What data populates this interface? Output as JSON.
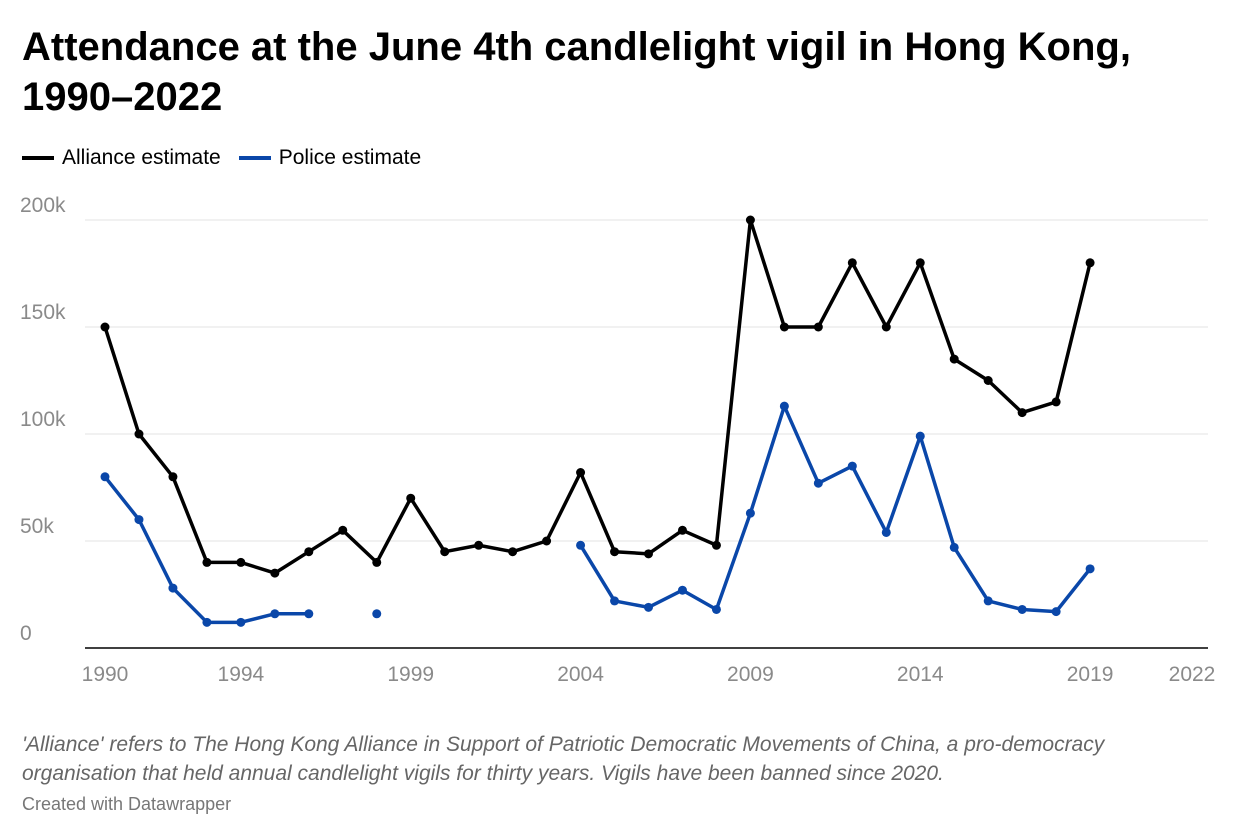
{
  "title": "Attendance at the June 4th candlelight vigil in Hong Kong, 1990–2022",
  "legend": [
    {
      "label": "Alliance estimate",
      "color": "#000000"
    },
    {
      "label": "Police estimate",
      "color": "#0a47a9"
    }
  ],
  "note": "'Alliance' refers to The Hong Kong Alliance in Support of Patriotic Democratic Movements of China, a pro-democracy organisation that held annual candlelight vigils for thirty years. Vigils have been banned since 2020.",
  "credit": "Created with Datawrapper",
  "chart_data": {
    "type": "line",
    "title": "Attendance at the June 4th candlelight vigil in Hong Kong, 1990–2022",
    "xlabel": "",
    "ylabel": "",
    "xlim": [
      1990,
      2022
    ],
    "ylim": [
      0,
      200000
    ],
    "x_ticks": [
      1990,
      1994,
      1999,
      2004,
      2009,
      2014,
      2019,
      2022
    ],
    "x_tick_labels": [
      "1990",
      "1994",
      "1999",
      "2004",
      "2009",
      "2014",
      "2019",
      "2022"
    ],
    "y_ticks": [
      0,
      50000,
      100000,
      150000,
      200000
    ],
    "y_tick_labels": [
      "0",
      "50k",
      "100k",
      "150k",
      "200k"
    ],
    "grid": true,
    "legend_position": "top-left",
    "series": [
      {
        "name": "Alliance estimate",
        "color": "#000000",
        "points": [
          [
            1990,
            150000
          ],
          [
            1991,
            100000
          ],
          [
            1992,
            80000
          ],
          [
            1993,
            40000
          ],
          [
            1994,
            40000
          ],
          [
            1995,
            35000
          ],
          [
            1996,
            45000
          ],
          [
            1997,
            55000
          ],
          [
            1998,
            40000
          ],
          [
            1999,
            70000
          ],
          [
            2000,
            45000
          ],
          [
            2001,
            48000
          ],
          [
            2002,
            45000
          ],
          [
            2003,
            50000
          ],
          [
            2004,
            82000
          ],
          [
            2005,
            45000
          ],
          [
            2006,
            44000
          ],
          [
            2007,
            55000
          ],
          [
            2008,
            48000
          ],
          [
            2009,
            200000
          ],
          [
            2010,
            150000
          ],
          [
            2011,
            150000
          ],
          [
            2012,
            180000
          ],
          [
            2013,
            150000
          ],
          [
            2014,
            180000
          ],
          [
            2015,
            135000
          ],
          [
            2016,
            125000
          ],
          [
            2017,
            110000
          ],
          [
            2018,
            115000
          ],
          [
            2019,
            180000
          ]
        ]
      },
      {
        "name": "Police estimate",
        "color": "#0a47a9",
        "points": [
          [
            1990,
            80000
          ],
          [
            1991,
            60000
          ],
          [
            1992,
            28000
          ],
          [
            1993,
            12000
          ],
          [
            1994,
            12000
          ],
          [
            1995,
            16000
          ],
          [
            1996,
            16000
          ],
          [
            1997,
            null
          ],
          [
            1998,
            16000
          ],
          [
            1999,
            null
          ],
          [
            2000,
            null
          ],
          [
            2001,
            null
          ],
          [
            2002,
            null
          ],
          [
            2003,
            null
          ],
          [
            2004,
            48000
          ],
          [
            2005,
            22000
          ],
          [
            2006,
            19000
          ],
          [
            2007,
            27000
          ],
          [
            2008,
            18000
          ],
          [
            2009,
            63000
          ],
          [
            2010,
            113000
          ],
          [
            2011,
            77000
          ],
          [
            2012,
            85000
          ],
          [
            2013,
            54000
          ],
          [
            2014,
            99000
          ],
          [
            2015,
            47000
          ],
          [
            2016,
            22000
          ],
          [
            2017,
            18000
          ],
          [
            2018,
            17000
          ],
          [
            2019,
            37000
          ]
        ]
      }
    ]
  }
}
